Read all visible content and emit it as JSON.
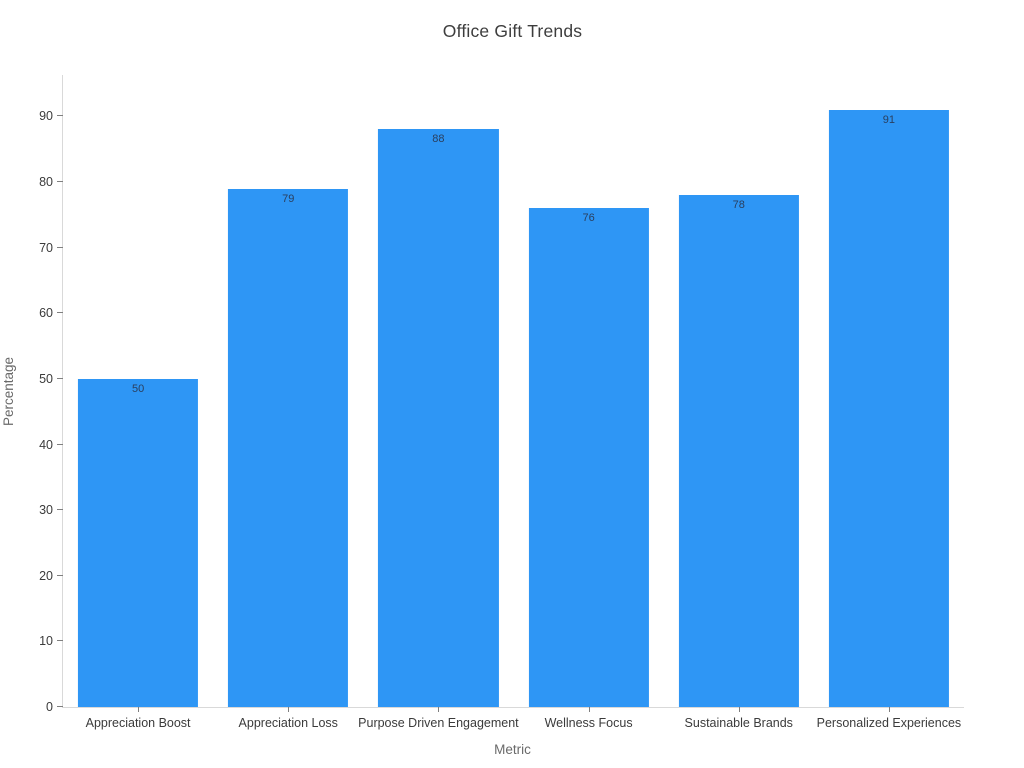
{
  "chart_data": {
    "type": "bar",
    "title": "Office Gift Trends",
    "xlabel": "Metric",
    "ylabel": "Percentage",
    "categories": [
      "Appreciation Boost",
      "Appreciation Loss",
      "Purpose Driven Engagement",
      "Wellness Focus",
      "Sustainable Brands",
      "Personalized Experiences"
    ],
    "values": [
      50,
      79,
      88,
      76,
      78,
      91
    ],
    "bar_labels": [
      "50",
      "79",
      "88",
      "76",
      "78",
      "91"
    ],
    "ylim": [
      0,
      96.3
    ],
    "yticks": [
      0,
      10,
      20,
      30,
      40,
      50,
      60,
      70,
      80,
      90
    ],
    "grid": false,
    "legend": "none",
    "colors": {
      "bar": "#2e96f5",
      "bar_label": "#2a3f5f",
      "axis_line": "#d9d9d9",
      "tick": "#7f7f7f",
      "tick_label": "#3b3b3b",
      "axis_title": "#6a6a6a",
      "title": "#3d3d3d",
      "background": "#ffffff"
    }
  }
}
